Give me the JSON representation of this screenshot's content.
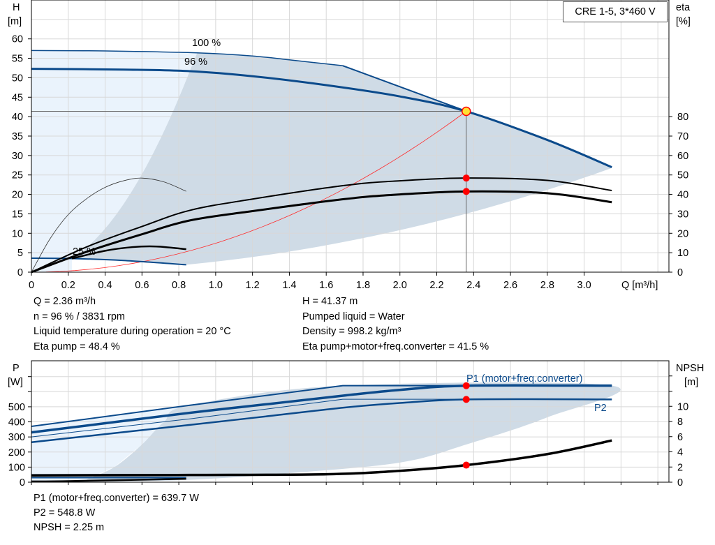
{
  "title": "CRE 1-5, 3*460 V",
  "colors": {
    "curve_blue": "#0b4a8b",
    "light_region": "#eaf3fc",
    "dark_region": "#cfdbe6",
    "system_curve": "#ff2a2a",
    "duty_point": "#ff0000",
    "duty_marker_fill": "#ffe033",
    "grid": "#d8d8d8"
  },
  "info_top": {
    "left": [
      "Q = 2.36 m³/h",
      "n = 96 % / 3831 rpm",
      "Liquid temperature during operation = 20 °C",
      "Eta pump = 48.4 %"
    ],
    "right": [
      "H = 41.37 m",
      "Pumped liquid = Water",
      "Density = 998.2 kg/m³",
      "Eta pump+motor+freq.converter = 41.5 %"
    ]
  },
  "info_bottom": [
    "P1 (motor+freq.converter) = 639.7 W",
    "P2 = 548.8 W",
    "NPSH = 2.25 m"
  ],
  "chart_data": [
    {
      "type": "line",
      "xlabel": "Q [m³/h]",
      "ylabel_left": "H\n[m]",
      "ylabel_left_lines": [
        "H",
        "[m]"
      ],
      "ylabel_right_lines": [
        "eta",
        "[%]"
      ],
      "x_ticks": [
        "0",
        "0.2",
        "0.4",
        "0.6",
        "0.8",
        "1.0",
        "1.2",
        "1.4",
        "1.6",
        "1.8",
        "2.0",
        "2.2",
        "2.4",
        "2.6",
        "2.8",
        "3.0"
      ],
      "y_left_ticks": [
        "0",
        "5",
        "10",
        "15",
        "20",
        "25",
        "30",
        "35",
        "40",
        "45",
        "50",
        "55",
        "60"
      ],
      "y_right_ticks": [
        "0",
        "10",
        "20",
        "30",
        "40",
        "50",
        "60",
        "70",
        "80"
      ],
      "xlim": [
        0,
        3.46
      ],
      "ylim_left": [
        0,
        70
      ],
      "ylim_right": [
        0,
        140
      ],
      "grid": true,
      "curve_labels": [
        "100 %",
        "96 %",
        "25 %"
      ],
      "duty_point": {
        "Q": 2.36,
        "H": 41.37,
        "eta_pump": 48.4,
        "eta_total": 41.5
      },
      "series": [
        {
          "id": "H-100",
          "axis": "left",
          "points": [
            [
              0,
              57
            ],
            [
              0.4,
              56.9
            ],
            [
              0.9,
              56.4
            ],
            [
              1.2,
              55.6
            ],
            [
              1.4,
              54.6
            ],
            [
              1.69,
              53.1
            ],
            [
              2.36,
              41.4
            ]
          ]
        },
        {
          "id": "H-96",
          "axis": "left",
          "points": [
            [
              0,
              52.3
            ],
            [
              0.5,
              52.1
            ],
            [
              0.86,
              51.7
            ],
            [
              1.2,
              50.4
            ],
            [
              1.6,
              48.1
            ],
            [
              2.0,
              45.2
            ],
            [
              2.36,
              41.37
            ],
            [
              2.8,
              34
            ],
            [
              3.15,
              27
            ]
          ]
        },
        {
          "id": "H-25",
          "axis": "left",
          "points": [
            [
              0,
              3.6
            ],
            [
              0.22,
              3.5
            ],
            [
              0.5,
              3.0
            ],
            [
              0.84,
              1.9
            ]
          ]
        },
        {
          "id": "eta-pump",
          "axis": "right",
          "points": [
            [
              0,
              0
            ],
            [
              0.3,
              13
            ],
            [
              0.6,
              23.5
            ],
            [
              0.86,
              31.8
            ],
            [
              1.2,
              37.6
            ],
            [
              1.7,
              44.6
            ],
            [
              2.0,
              47
            ],
            [
              2.36,
              48.4
            ],
            [
              2.8,
              47.2
            ],
            [
              3.15,
              42
            ]
          ]
        },
        {
          "id": "eta-total",
          "axis": "right",
          "points": [
            [
              0,
              0
            ],
            [
              0.3,
              10.5
            ],
            [
              0.6,
              19.5
            ],
            [
              0.86,
              26.6
            ],
            [
              1.2,
              31.4
            ],
            [
              1.7,
              37.6
            ],
            [
              2.0,
              40
            ],
            [
              2.36,
              41.5
            ],
            [
              2.8,
              40.6
            ],
            [
              3.15,
              36
            ]
          ]
        },
        {
          "id": "eta-25",
          "axis": "right",
          "points": [
            [
              0.22,
              7
            ],
            [
              0.4,
              11
            ],
            [
              0.55,
              12.9
            ],
            [
              0.68,
              13.2
            ],
            [
              0.84,
              11.8
            ]
          ]
        },
        {
          "id": "eta-low-speed",
          "axis": "right",
          "points": [
            [
              0,
              0
            ],
            [
              0.1,
              17
            ],
            [
              0.2,
              29.6
            ],
            [
              0.3,
              37.8
            ],
            [
              0.4,
              43.6
            ],
            [
              0.5,
              47
            ],
            [
              0.6,
              48.4
            ],
            [
              0.72,
              46.4
            ],
            [
              0.84,
              41.6
            ]
          ]
        },
        {
          "id": "system-curve",
          "axis": "left",
          "points": "quadratic-through-duty-point"
        }
      ]
    },
    {
      "type": "line",
      "ylabel_left_lines": [
        "P",
        "[W]"
      ],
      "ylabel_right_lines": [
        "NPSH",
        "[m]"
      ],
      "y_left_ticks": [
        "0",
        "100",
        "200",
        "300",
        "400",
        "500"
      ],
      "y_right_ticks": [
        "0",
        "2",
        "4",
        "6",
        "8",
        "10"
      ],
      "xlim": [
        0,
        3.46
      ],
      "ylim_left": [
        0,
        805
      ],
      "ylim_right": [
        0,
        16
      ],
      "grid": true,
      "series_labels": [
        "P1 (motor+freq.converter)",
        "P2"
      ],
      "duty_point": {
        "Q": 2.36,
        "P1": 639.7,
        "P2": 548.8,
        "NPSH": 2.25
      },
      "series": [
        {
          "id": "P1-100",
          "axis": "left",
          "points": [
            [
              0,
              370
            ],
            [
              0.86,
              510
            ],
            [
              1.69,
              640
            ],
            [
              3.15,
              640
            ]
          ]
        },
        {
          "id": "P1-96",
          "axis": "left",
          "points": [
            [
              0,
              330
            ],
            [
              0.86,
              460
            ],
            [
              1.3,
              520
            ],
            [
              1.7,
              575
            ],
            [
              2.0,
              612
            ],
            [
              2.36,
              639.7
            ],
            [
              3.15,
              640
            ]
          ]
        },
        {
          "id": "P2-100",
          "axis": "left",
          "points": [
            [
              0,
              300
            ],
            [
              0.86,
              420
            ],
            [
              1.69,
              550
            ],
            [
              3.15,
              550
            ]
          ]
        },
        {
          "id": "P2-96",
          "axis": "left",
          "points": [
            [
              0,
              265
            ],
            [
              0.86,
              380
            ],
            [
              1.3,
              440
            ],
            [
              1.7,
              495
            ],
            [
              2.0,
              525
            ],
            [
              2.36,
              548.8
            ],
            [
              3.15,
              549
            ]
          ]
        },
        {
          "id": "P-25-a",
          "axis": "left",
          "points": [
            [
              0,
              48
            ],
            [
              0.84,
              48
            ]
          ]
        },
        {
          "id": "P-25-b",
          "axis": "left",
          "points": [
            [
              0,
              30
            ],
            [
              0.84,
              30
            ]
          ]
        },
        {
          "id": "NPSH-96",
          "axis": "right",
          "points": [
            [
              0,
              0.9
            ],
            [
              0.86,
              0.95
            ],
            [
              1.6,
              1.05
            ],
            [
              2.0,
              1.5
            ],
            [
              2.36,
              2.25
            ],
            [
              2.8,
              3.7
            ],
            [
              3.15,
              5.5
            ]
          ]
        },
        {
          "id": "NPSH-25",
          "axis": "right",
          "points": [
            [
              0,
              0.1
            ],
            [
              0.22,
              0.15
            ],
            [
              0.84,
              0.45
            ]
          ]
        }
      ]
    }
  ]
}
